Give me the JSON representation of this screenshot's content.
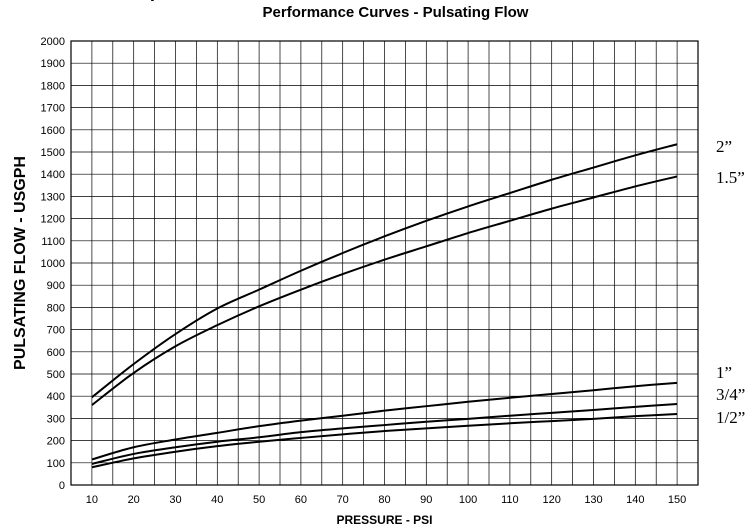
{
  "header": {
    "title_partial": "(",
    "subtitle": "Performance Curves - Pulsating Flow"
  },
  "chart_data": {
    "type": "line",
    "title": "",
    "subtitle": "Performance Curves - Pulsating Flow",
    "xlabel": "PRESSURE - PSI",
    "ylabel": "PULSATING FLOW - USGPH",
    "xlim": [
      5,
      155
    ],
    "ylim": [
      0,
      2000
    ],
    "x_ticks": [
      10,
      20,
      30,
      40,
      50,
      60,
      70,
      80,
      90,
      100,
      110,
      120,
      130,
      140,
      150
    ],
    "y_ticks": [
      0,
      100,
      200,
      300,
      400,
      500,
      600,
      700,
      800,
      900,
      1000,
      1100,
      1200,
      1300,
      1400,
      1500,
      1600,
      1700,
      1800,
      1900,
      2000
    ],
    "grid": true,
    "legend": "right",
    "x": [
      10,
      20,
      30,
      40,
      50,
      60,
      70,
      80,
      90,
      100,
      110,
      120,
      130,
      140,
      150
    ],
    "series": [
      {
        "name": "2”",
        "values": [
          395,
          545,
          680,
          795,
          880,
          965,
          1045,
          1120,
          1190,
          1255,
          1315,
          1375,
          1430,
          1485,
          1535
        ]
      },
      {
        "name": "1.5”",
        "values": [
          360,
          505,
          625,
          720,
          805,
          880,
          950,
          1015,
          1075,
          1135,
          1190,
          1245,
          1295,
          1345,
          1390
        ]
      },
      {
        "name": "1”",
        "values": [
          115,
          170,
          205,
          235,
          265,
          290,
          312,
          335,
          355,
          375,
          393,
          410,
          427,
          445,
          460
        ]
      },
      {
        "name": "3/4”",
        "values": [
          95,
          140,
          170,
          195,
          215,
          238,
          255,
          270,
          285,
          298,
          312,
          325,
          338,
          352,
          365
        ]
      },
      {
        "name": "1/2”",
        "values": [
          80,
          120,
          150,
          175,
          195,
          212,
          228,
          243,
          255,
          267,
          278,
          288,
          298,
          310,
          320
        ]
      }
    ]
  }
}
